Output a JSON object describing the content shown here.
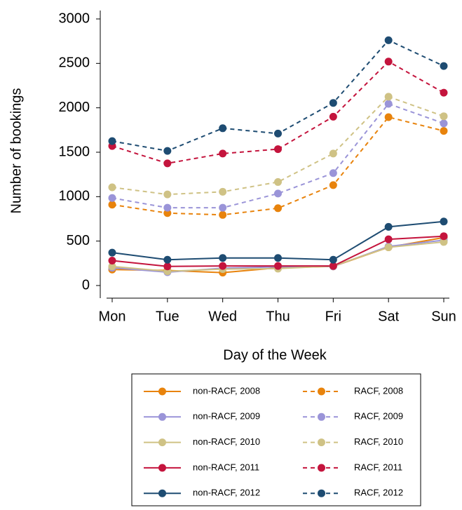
{
  "chart_data": {
    "type": "line",
    "x_label": "Day of the Week",
    "y_label": "Number of bookings",
    "categories": [
      "Mon",
      "Tue",
      "Wed",
      "Thu",
      "Fri",
      "Sat",
      "Sun"
    ],
    "ylim": [
      0,
      3000
    ],
    "yticks": [
      0,
      500,
      1000,
      1500,
      2000,
      2500,
      3000
    ],
    "grid": false,
    "legend_position": "bottom",
    "legend_columns": 2,
    "series": [
      {
        "name": "non-RACF, 2008",
        "color": "#e8830c",
        "line_style": "solid",
        "values": [
          180,
          170,
          145,
          200,
          215,
          430,
          540
        ]
      },
      {
        "name": "non-RACF, 2009",
        "color": "#9a94d8",
        "line_style": "solid",
        "values": [
          200,
          150,
          195,
          210,
          215,
          440,
          510
        ]
      },
      {
        "name": "non-RACF, 2010",
        "color": "#cfc285",
        "line_style": "solid",
        "values": [
          215,
          160,
          185,
          190,
          220,
          430,
          490
        ]
      },
      {
        "name": "non-RACF, 2011",
        "color": "#c4143d",
        "line_style": "solid",
        "values": [
          280,
          215,
          220,
          220,
          220,
          520,
          555
        ]
      },
      {
        "name": "non-RACF, 2012",
        "color": "#1e4c72",
        "line_style": "solid",
        "values": [
          370,
          290,
          310,
          310,
          290,
          660,
          720
        ]
      },
      {
        "name": "RACF, 2008",
        "color": "#e8830c",
        "line_style": "dashed",
        "values": [
          910,
          815,
          795,
          870,
          1130,
          1895,
          1740
        ]
      },
      {
        "name": "RACF, 2009",
        "color": "#9a94d8",
        "line_style": "dashed",
        "values": [
          985,
          875,
          875,
          1035,
          1265,
          2045,
          1825
        ]
      },
      {
        "name": "RACF, 2010",
        "color": "#cfc285",
        "line_style": "dashed",
        "values": [
          1105,
          1025,
          1055,
          1165,
          1485,
          2125,
          1905
        ]
      },
      {
        "name": "RACF, 2011",
        "color": "#c4143d",
        "line_style": "dashed",
        "values": [
          1570,
          1375,
          1485,
          1535,
          1900,
          2520,
          2170
        ]
      },
      {
        "name": "RACF, 2012",
        "color": "#1e4c72",
        "line_style": "dashed",
        "values": [
          1625,
          1515,
          1770,
          1710,
          2055,
          2760,
          2470
        ]
      }
    ]
  }
}
